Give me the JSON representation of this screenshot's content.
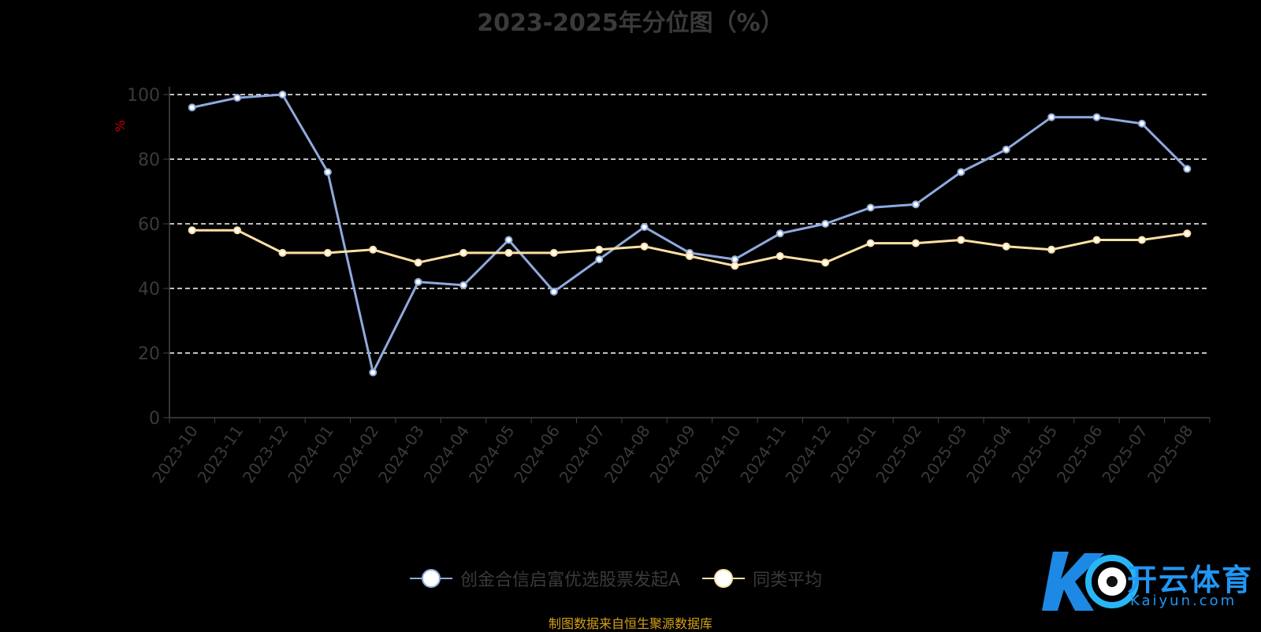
{
  "chart_data": {
    "type": "line",
    "title": "2023-2025年分位图（%）",
    "ylabel": "%",
    "xlabel": "",
    "ylim": [
      0,
      100
    ],
    "yticks": [
      0,
      20,
      40,
      60,
      80,
      100
    ],
    "grid": true,
    "legend_position": "bottom",
    "categories": [
      "2023-10",
      "2023-11",
      "2023-12",
      "2024-01",
      "2024-02",
      "2024-03",
      "2024-04",
      "2024-05",
      "2024-06",
      "2024-07",
      "2024-08",
      "2024-09",
      "2024-10",
      "2024-11",
      "2024-12",
      "2025-01",
      "2025-02",
      "2025-03",
      "2025-04",
      "2025-05",
      "2025-06",
      "2025-07",
      "2025-08"
    ],
    "series": [
      {
        "name": "创金合信启富优选股票发起A",
        "color": "#8faadc",
        "values": [
          96,
          99,
          100,
          76,
          14,
          42,
          41,
          55,
          39,
          49,
          59,
          51,
          49,
          57,
          60,
          65,
          66,
          76,
          83,
          93,
          93,
          91,
          77
        ]
      },
      {
        "name": "同类平均",
        "color": "#ffe0a3",
        "values": [
          58,
          58,
          51,
          51,
          52,
          48,
          51,
          51,
          51,
          52,
          53,
          50,
          47,
          50,
          48,
          54,
          54,
          55,
          53,
          52,
          55,
          55,
          57
        ]
      }
    ]
  },
  "footnote": "制图数据来自恒生聚源数据库",
  "watermark": {
    "text": "开云体育",
    "sub": "Kaiyun.com"
  }
}
